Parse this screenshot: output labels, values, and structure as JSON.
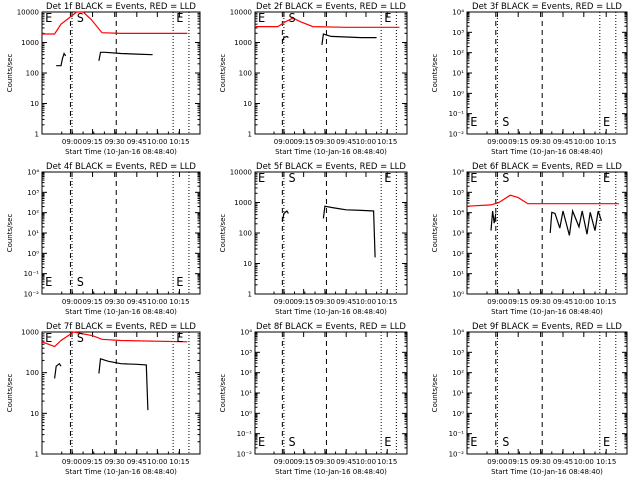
{
  "chart_data": [
    {
      "type": "line",
      "title": "Det 1f BLACK = Events, RED = LLD",
      "xlabel": "Start Time (10-Jan-16 08:48:40)",
      "ylabel": "Counts/sec",
      "xticks": [
        "09:00",
        "09:15",
        "09:30",
        "09:45",
        "10:00",
        "10:15"
      ],
      "yticks": [
        "1",
        "10",
        "100",
        "1000",
        "10000"
      ],
      "markers": [
        "E",
        "S",
        "E"
      ],
      "series": [
        {
          "color": "#ff0000",
          "points": [
            [
              0,
              0.82
            ],
            [
              0.08,
              0.82
            ],
            [
              0.12,
              0.9
            ],
            [
              0.22,
              1.02
            ],
            [
              0.26,
              1.0
            ],
            [
              0.31,
              0.94
            ],
            [
              0.38,
              0.83
            ],
            [
              0.5,
              0.825
            ],
            [
              0.7,
              0.825
            ],
            [
              0.92,
              0.825
            ]
          ]
        },
        {
          "color": "#000000",
          "points": [
            [
              0.09,
              0.56
            ],
            [
              0.12,
              0.56
            ],
            [
              0.13,
              0.62
            ],
            [
              0.14,
              0.66
            ],
            [
              0.15,
              0.64
            ]
          ]
        },
        {
          "color": "#000000",
          "points": [
            [
              0.36,
              0.6
            ],
            [
              0.37,
              0.67
            ],
            [
              0.4,
              0.67
            ],
            [
              0.5,
              0.66
            ],
            [
              0.6,
              0.655
            ],
            [
              0.7,
              0.65
            ]
          ]
        }
      ]
    },
    {
      "type": "line",
      "title": "Det 2f BLACK = Events, RED = LLD",
      "xlabel": "Start Time (10-Jan-16 08:48:40)",
      "ylabel": "Counts/sec",
      "xticks": [
        "09:00",
        "09:15",
        "09:30",
        "09:45",
        "10:00",
        "10:15"
      ],
      "yticks": [
        "1",
        "10",
        "100",
        "1000",
        "10000"
      ],
      "markers": [
        "E",
        "S",
        "E"
      ],
      "series": [
        {
          "color": "#ff0000",
          "points": [
            [
              0,
              0.88
            ],
            [
              0.15,
              0.88
            ],
            [
              0.2,
              0.92
            ],
            [
              0.25,
              0.95
            ],
            [
              0.3,
              0.92
            ],
            [
              0.38,
              0.88
            ],
            [
              0.6,
              0.875
            ],
            [
              0.95,
              0.875
            ]
          ]
        },
        {
          "color": "#000000",
          "points": [
            [
              0.18,
              0.76
            ],
            [
              0.19,
              0.79
            ],
            [
              0.21,
              0.8
            ],
            [
              0.22,
              0.79
            ]
          ]
        },
        {
          "color": "#000000",
          "points": [
            [
              0.44,
              0.73
            ],
            [
              0.45,
              0.82
            ],
            [
              0.5,
              0.8
            ],
            [
              0.6,
              0.795
            ],
            [
              0.7,
              0.79
            ],
            [
              0.8,
              0.79
            ]
          ]
        }
      ]
    },
    {
      "type": "line",
      "title": "Det 3f BLACK = Events, RED = LLD",
      "xlabel": "Start Time (10-Jan-16 08:48:40)",
      "ylabel": "Counts/sec",
      "xticks": [
        "09:00",
        "09:15",
        "09:30",
        "09:45",
        "10:00",
        "10:15"
      ],
      "yticks": [
        "10⁻²",
        "10⁻¹",
        "10⁰",
        "10¹",
        "10²",
        "10³",
        "10⁴"
      ],
      "markers": [
        "E",
        "S",
        "E"
      ],
      "series": []
    },
    {
      "type": "line",
      "title": "Det 4f BLACK = Events, RED = LLD",
      "xlabel": "Start Time (10-Jan-16 08:48:40)",
      "ylabel": "Counts/sec",
      "xticks": [
        "09:00",
        "09:15",
        "09:30",
        "09:45",
        "10:00",
        "10:15"
      ],
      "yticks": [
        "10⁻²",
        "10⁻¹",
        "10⁰",
        "10¹",
        "10²",
        "10³",
        "10⁴"
      ],
      "markers": [
        "E",
        "S",
        "E"
      ],
      "series": []
    },
    {
      "type": "line",
      "title": "Det 5f BLACK = Events, RED = LLD",
      "xlabel": "Start Time (10-Jan-16 08:48:40)",
      "ylabel": "Counts/sec",
      "xticks": [
        "09:00",
        "09:15",
        "09:30",
        "09:45",
        "10:00",
        "10:15"
      ],
      "yticks": [
        "1",
        "10",
        "100",
        "1000",
        "10000"
      ],
      "markers": [
        "E",
        "S",
        "E"
      ],
      "series": [
        {
          "color": "#000000",
          "points": [
            [
              0.18,
              0.6
            ],
            [
              0.19,
              0.66
            ],
            [
              0.21,
              0.68
            ],
            [
              0.22,
              0.66
            ]
          ]
        },
        {
          "color": "#000000",
          "points": [
            [
              0.45,
              0.62
            ],
            [
              0.46,
              0.72
            ],
            [
              0.5,
              0.71
            ],
            [
              0.55,
              0.7
            ],
            [
              0.6,
              0.69
            ],
            [
              0.7,
              0.685
            ],
            [
              0.78,
              0.68
            ],
            [
              0.79,
              0.3
            ]
          ]
        }
      ]
    },
    {
      "type": "line",
      "title": "Det 6f BLACK = Events, RED = LLD",
      "xlabel": "Start Time (10-Jan-16 08:48:40)",
      "ylabel": "Counts/sec",
      "xticks": [
        "09:00",
        "09:15",
        "09:30",
        "09:45",
        "10:00",
        "10:15"
      ],
      "yticks": [
        "10⁰",
        "10¹",
        "10²",
        "10³",
        "10⁴",
        "10⁵",
        "10⁶"
      ],
      "markers": [
        "E",
        "S",
        "E"
      ],
      "series": [
        {
          "color": "#ff0000",
          "points": [
            [
              0,
              0.72
            ],
            [
              0.15,
              0.73
            ],
            [
              0.2,
              0.75
            ],
            [
              0.27,
              0.81
            ],
            [
              0.32,
              0.79
            ],
            [
              0.38,
              0.74
            ],
            [
              0.5,
              0.74
            ],
            [
              0.95,
              0.74
            ]
          ]
        },
        {
          "color": "#000000",
          "points": [
            [
              0.15,
              0.52
            ],
            [
              0.16,
              0.68
            ],
            [
              0.17,
              0.58
            ],
            [
              0.18,
              0.66
            ]
          ]
        },
        {
          "color": "#000000",
          "points": [
            [
              0.52,
              0.5
            ],
            [
              0.53,
              0.67
            ],
            [
              0.55,
              0.66
            ],
            [
              0.58,
              0.54
            ],
            [
              0.6,
              0.68
            ],
            [
              0.64,
              0.48
            ],
            [
              0.66,
              0.68
            ],
            [
              0.7,
              0.55
            ],
            [
              0.72,
              0.68
            ],
            [
              0.75,
              0.49
            ],
            [
              0.77,
              0.67
            ],
            [
              0.8,
              0.52
            ],
            [
              0.82,
              0.68
            ],
            [
              0.84,
              0.6
            ]
          ]
        }
      ]
    },
    {
      "type": "line",
      "title": "Det 7f BLACK = Events, RED = LLD",
      "xlabel": "Start Time (10-Jan-16 08:48:40)",
      "ylabel": "Counts/sec",
      "xticks": [
        "09:00",
        "09:15",
        "09:30",
        "09:45",
        "10:00",
        "10:15"
      ],
      "yticks": [
        "1",
        "10",
        "100",
        "1000"
      ],
      "markers": [
        "E",
        "S",
        "E"
      ],
      "series": [
        {
          "color": "#ff0000",
          "points": [
            [
              0,
              0.92
            ],
            [
              0.08,
              0.88
            ],
            [
              0.12,
              0.93
            ],
            [
              0.2,
              1.02
            ],
            [
              0.32,
              0.97
            ],
            [
              0.38,
              0.94
            ],
            [
              0.5,
              0.93
            ],
            [
              0.92,
              0.92
            ]
          ]
        },
        {
          "color": "#000000",
          "points": [
            [
              0.08,
              0.62
            ],
            [
              0.09,
              0.72
            ],
            [
              0.11,
              0.74
            ],
            [
              0.12,
              0.72
            ]
          ]
        },
        {
          "color": "#000000",
          "points": [
            [
              0.36,
              0.66
            ],
            [
              0.37,
              0.78
            ],
            [
              0.42,
              0.76
            ],
            [
              0.5,
              0.74
            ],
            [
              0.6,
              0.735
            ],
            [
              0.66,
              0.73
            ],
            [
              0.67,
              0.36
            ]
          ]
        }
      ]
    },
    {
      "type": "line",
      "title": "Det 8f BLACK = Events, RED = LLD",
      "xlabel": "Start Time (10-Jan-16 08:48:40)",
      "ylabel": "Counts/sec",
      "xticks": [
        "09:00",
        "09:15",
        "09:30",
        "09:45",
        "10:00",
        "10:15"
      ],
      "yticks": [
        "10⁻²",
        "10⁻¹",
        "10⁰",
        "10¹",
        "10²",
        "10³",
        "10⁴"
      ],
      "markers": [
        "E",
        "S",
        "E"
      ],
      "series": []
    },
    {
      "type": "line",
      "title": "Det 9f BLACK = Events, RED = LLD",
      "xlabel": "Start Time (10-Jan-16 08:48:40)",
      "ylabel": "Counts/sec",
      "xticks": [
        "09:00",
        "09:15",
        "09:30",
        "09:45",
        "10:00",
        "10:15"
      ],
      "yticks": [
        "10⁻²",
        "10⁻¹",
        "10⁰",
        "10¹",
        "10²",
        "10³",
        "10⁴"
      ],
      "markers": [
        "E",
        "S",
        "E"
      ],
      "series": []
    }
  ]
}
